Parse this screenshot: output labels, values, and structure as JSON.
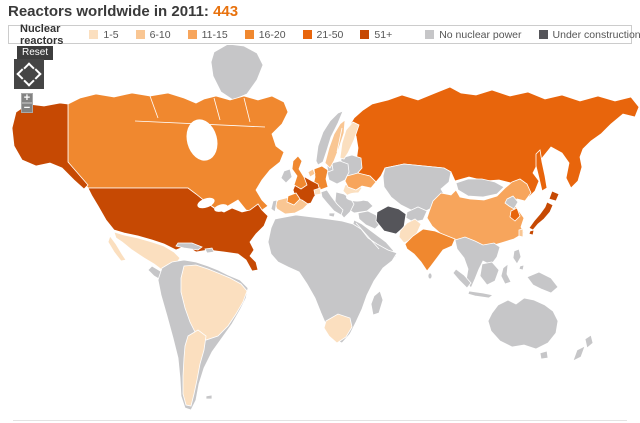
{
  "title": {
    "label": "Reactors worldwide in 2011:",
    "value": "443"
  },
  "legend": {
    "label": "Nuclear reactors",
    "items": [
      {
        "label": "1-5",
        "key": "1-5",
        "color": "#fbdfbf"
      },
      {
        "label": "6-10",
        "key": "6-10",
        "color": "#f9c693"
      },
      {
        "label": "11-15",
        "key": "11-15",
        "color": "#f7a55c"
      },
      {
        "label": "16-20",
        "key": "16-20",
        "color": "#f0882f"
      },
      {
        "label": "21-50",
        "key": "21-50",
        "color": "#e8650c"
      },
      {
        "label": "51+",
        "key": "51+",
        "color": "#c64903"
      },
      {
        "label": "No nuclear power",
        "key": "none",
        "color": "#c6c6c8"
      },
      {
        "label": "Under construction*",
        "key": "under-construction",
        "color": "#55555a"
      }
    ]
  },
  "controls": {
    "reset": "Reset",
    "zoom_in": "+",
    "zoom_out": "−"
  },
  "map": {
    "ocean_color": "#ffffff",
    "border_color": "#ffffff",
    "regions": {
      "Greenland": "none",
      "Canada": "16-20",
      "United States": "51+",
      "Mexico": "1-5",
      "Central America": "none",
      "Caribbean": "none",
      "South America": "none",
      "Brazil": "1-5",
      "Argentina": "1-5",
      "Falkland Islands": "none",
      "Iceland": "none",
      "Norway": "none",
      "Sweden": "6-10",
      "Finland": "1-5",
      "Denmark": "none",
      "United Kingdom": "16-20",
      "Ireland": "none",
      "France": "51+",
      "Spain": "6-10",
      "Portugal": "none",
      "Germany": "16-20",
      "Belgium": "6-10",
      "Switzerland": "1-5",
      "Italy": "none",
      "Central Europe": "none",
      "Balkans": "none",
      "Baltics and Belarus": "none",
      "Romania": "1-5",
      "Ukraine": "11-15",
      "Turkey": "none",
      "Middle East": "none",
      "Arabian Peninsula": "none",
      "Iran": "under-construction",
      "Afghanistan": "none",
      "Central Asia": "none",
      "Russia": "21-50",
      "Mongolia": "none",
      "China": "11-15",
      "Pakistan": "1-5",
      "India": "16-20",
      "Sri Lanka": "none",
      "Southeast Asia": "none",
      "North Korea": "none",
      "South Korea": "21-50",
      "Japan": "51+",
      "Taiwan": "6-10",
      "Philippines": "none",
      "Indonesia": "none",
      "New Guinea": "none",
      "Australia": "none",
      "New Zealand": "none",
      "Africa": "none",
      "South Africa": "1-5",
      "Madagascar": "none"
    }
  }
}
